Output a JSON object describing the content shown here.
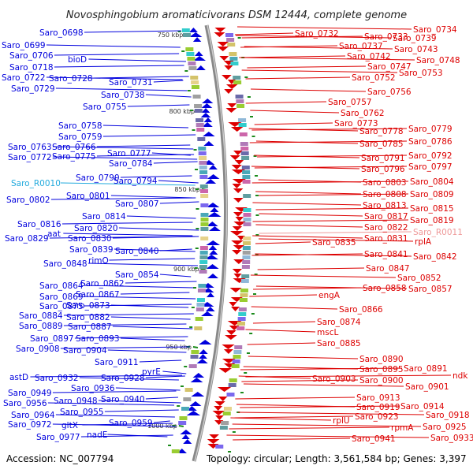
{
  "map": {
    "title": "Novosphingobium aromaticivorans DSM 12444, complete genome",
    "accession": "Accession: NC_007794",
    "topology": "Topology: circular; Length: 3,561,584 bp; Genes: 3,397"
  },
  "colors": {
    "minus_strand": "#0000dd",
    "plus_strand": "#dd0000",
    "rna_minus": "#22aadd",
    "rna_plus": "#ee9999",
    "backbone": "#888888",
    "tick": "#1a8a1a"
  },
  "scale_labels": [
    "750 kbp",
    "800 kbp",
    "850 kbp",
    "900 kbp",
    "950 kbp",
    "1000 kbp"
  ],
  "left_genes": [
    "Saro_0698",
    "Saro_0699",
    "Saro_0706",
    "bioD",
    "Saro_0718",
    "Saro_0722",
    "Saro_0728",
    "Saro_0729",
    "Saro_0731",
    "Saro_0738",
    "Saro_0755",
    "Saro_0758",
    "Saro_0759",
    "Saro_0763",
    "Saro_0766",
    "Saro_0772",
    "Saro_0775",
    "Saro_0777",
    "Saro_0784",
    "Saro_R0010",
    "Saro_0790",
    "Saro_0794",
    "Saro_0802",
    "Saro_0801",
    "Saro_0807",
    "Saro_0814",
    "Saro_0816",
    "Saro_0820",
    "Saro_0829",
    "aat",
    "Saro_0830",
    "Saro_0839",
    "Saro_0840",
    "Saro_0848",
    "rimO",
    "Saro_0854",
    "Saro_0862",
    "Saro_0864",
    "Saro_0867",
    "Saro_0869",
    "Saro_0875",
    "Saro_0873",
    "Saro_0884",
    "Saro_0882",
    "Saro_0889",
    "Saro_0887",
    "Saro_0897",
    "Saro_0893",
    "Saro_0908",
    "Saro_0904",
    "Saro_0911",
    "pyrE",
    "astD",
    "Saro_0932",
    "Saro_0928",
    "Saro_0936",
    "Saro_0949",
    "Saro_0948",
    "Saro_0940",
    "Saro_0956",
    "Saro_0955",
    "Saro_0964",
    "Saro_0959",
    "Saro_0972",
    "gltX",
    "nadE",
    "Saro_0977"
  ],
  "right_genes": [
    "Saro_0732",
    "Saro_0734",
    "Saro_0733",
    "Saro_0739",
    "Saro_0737",
    "Saro_0743",
    "Saro_0742",
    "Saro_0748",
    "Saro_0747",
    "Saro_0753",
    "Saro_0752",
    "Saro_0756",
    "Saro_0757",
    "Saro_0762",
    "Saro_0773",
    "Saro_0778",
    "Saro_0779",
    "Saro_0785",
    "Saro_0786",
    "Saro_0791",
    "Saro_0792",
    "Saro_0796",
    "Saro_0797",
    "Saro_0803",
    "Saro_0804",
    "Saro_0808",
    "Saro_0809",
    "Saro_0813",
    "Saro_0815",
    "Saro_0817",
    "Saro_0819",
    "Saro_0822",
    "Saro_R0011",
    "Saro_0831",
    "Saro_0835",
    "rplA",
    "Saro_0841",
    "Saro_0842",
    "Saro_0847",
    "Saro_0852",
    "Saro_0858",
    "Saro_0857",
    "engA",
    "Saro_0866",
    "Saro_0874",
    "mscL",
    "Saro_0885",
    "Saro_0890",
    "Saro_0891",
    "Saro_0895",
    "ndk",
    "Saro_0903",
    "Saro_0900",
    "Saro_0901",
    "Saro_0913",
    "Saro_0919",
    "Saro_0914",
    "rplU",
    "Saro_0923",
    "Saro_0918",
    "rpmA",
    "Saro_0925",
    "Saro_0941",
    "Saro_0933"
  ]
}
